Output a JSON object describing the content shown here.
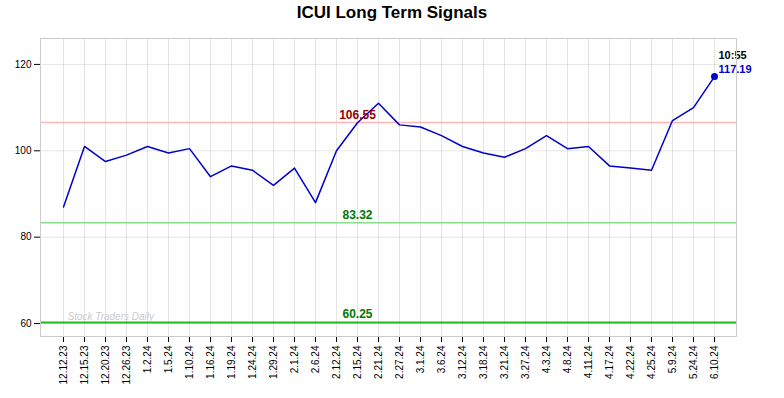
{
  "chart_data": {
    "type": "line",
    "title": "ICUI Long Term Signals",
    "categories": [
      "12.12.23",
      "12.15.23",
      "12.20.23",
      "12.26.23",
      "1.2.24",
      "1.5.24",
      "1.10.24",
      "1.16.24",
      "1.19.24",
      "1.24.24",
      "1.29.24",
      "2.1.24",
      "2.6.24",
      "2.12.24",
      "2.15.24",
      "2.21.24",
      "2.27.24",
      "3.1.24",
      "3.6.24",
      "3.12.24",
      "3.18.24",
      "3.21.24",
      "3.27.24",
      "4.3.24",
      "4.8.24",
      "4.11.24",
      "4.17.24",
      "4.22.24",
      "4.25.24",
      "5.9.24",
      "5.24.24",
      "6.10.24"
    ],
    "values": [
      87.0,
      101.0,
      97.5,
      99.0,
      101.0,
      99.5,
      100.5,
      94.0,
      96.5,
      95.5,
      92.0,
      96.0,
      88.0,
      100.0,
      106.5,
      111.0,
      106.0,
      105.5,
      103.5,
      101.0,
      99.5,
      98.5,
      100.5,
      103.5,
      100.5,
      101.0,
      96.5,
      96.0,
      95.5,
      107.0,
      110.0,
      117.19
    ],
    "color": "#0000cc",
    "ylim": [
      57,
      126
    ],
    "yticks": [
      60,
      80,
      100,
      120
    ],
    "grid": true,
    "background_color": "#ffffff",
    "reference_lines": [
      {
        "value": 106.55,
        "color": "#ffb6b6",
        "label": "106.55",
        "label_color": "#990000"
      },
      {
        "value": 83.32,
        "color": "#88dd88",
        "label": "83.32",
        "label_color": "#007700"
      },
      {
        "value": 60.25,
        "color": "#22bb22",
        "label": "60.25",
        "label_color": "#007700"
      }
    ],
    "last_point_labels": [
      {
        "text": "10:55",
        "color": "#000000"
      },
      {
        "text": "117.19",
        "color": "#0000cc"
      }
    ],
    "watermark": {
      "text": "Stock Traders Daily",
      "color": "#bbbbbb"
    }
  }
}
